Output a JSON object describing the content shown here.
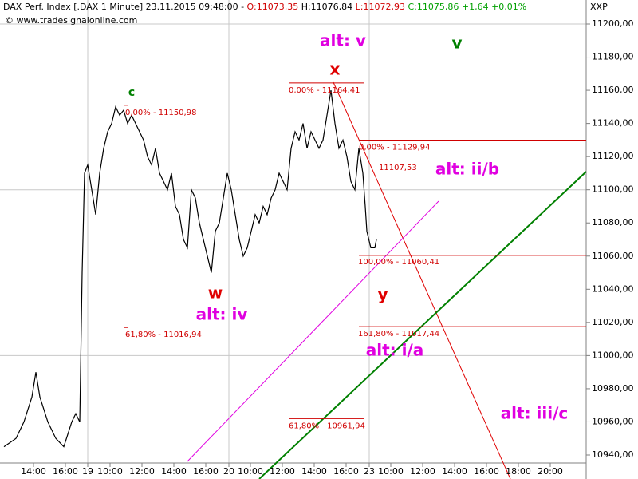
{
  "header": {
    "instrument": "DAX Perf. Index [.DAX  1 Minute] 23.11.2015 09:48:00 - ",
    "open": "O:11073,35",
    "high": "H:11076,84",
    "low": "L:11072,93",
    "close": "C:11075,86 +1,64 +0,01%",
    "source": "© www.tradesignalonline.com",
    "symbol": "XXP"
  },
  "chart_data": {
    "type": "line",
    "series": [
      {
        "name": "DAX",
        "color": "#000000",
        "x": [
          0.25,
          1,
          1.5,
          2,
          2.25,
          2.5,
          3,
          3.5,
          4,
          4.5,
          4.75,
          5,
          5.15,
          5.3,
          5.5,
          5.75,
          6,
          6.25,
          6.5,
          6.75,
          7,
          7.25,
          7.5,
          7.75,
          8,
          8.25,
          8.5,
          8.75,
          9,
          9.25,
          9.5,
          9.75,
          10,
          10.25,
          10.5,
          10.75,
          11,
          11.25,
          11.5,
          11.75,
          12,
          12.25,
          12.5,
          12.75,
          13,
          13.25,
          13.5,
          13.75,
          14,
          14.25,
          14.5,
          14.75,
          15,
          15.25,
          15.5,
          15.75,
          16,
          16.25,
          16.5,
          16.75,
          17,
          17.25,
          17.5,
          17.75,
          18,
          18.25,
          18.5,
          18.75,
          19,
          19.25,
          19.5,
          19.75,
          20,
          20.25,
          20.5,
          20.75,
          21,
          21.25,
          21.5,
          21.75,
          22,
          22.25,
          22.5,
          22.75,
          22.9,
          23,
          23.25,
          23.5,
          23.6
        ],
        "values": [
          10945,
          10950,
          10960,
          10975,
          10990,
          10975,
          10960,
          10950,
          10945,
          10960,
          10965,
          10960,
          11050,
          11110,
          11115,
          11100,
          11085,
          11110,
          11125,
          11135,
          11140,
          11150,
          11145,
          11148,
          11140,
          11145,
          11140,
          11135,
          11130,
          11120,
          11115,
          11125,
          11110,
          11105,
          11100,
          11110,
          11090,
          11085,
          11070,
          11065,
          11100,
          11095,
          11080,
          11070,
          11060,
          11050,
          11075,
          11080,
          11095,
          11110,
          11100,
          11085,
          11070,
          11060,
          11065,
          11075,
          11085,
          11080,
          11090,
          11085,
          11095,
          11100,
          11110,
          11105,
          11100,
          11125,
          11135,
          11130,
          11140,
          11125,
          11135,
          11130,
          11125,
          11130,
          11145,
          11160,
          11140,
          11125,
          11130,
          11120,
          11105,
          11100,
          11125,
          11110,
          11090,
          11075,
          11065,
          11065,
          11070
        ]
      }
    ],
    "levels": [
      {
        "value": 11150.98,
        "label": "0,00% - 11150,98"
      },
      {
        "value": 11164.41,
        "label": "0,00% - 11164,41"
      },
      {
        "value": 11129.94,
        "label": "0,00% - 11129,94"
      },
      {
        "value": 11060.41,
        "label": "100,00% - 11060,41"
      },
      {
        "value": 11017.44,
        "label": "161,80% - 11017,44"
      },
      {
        "value": 11016.94,
        "label": "61,80% - 11016,94"
      },
      {
        "value": 10961.94,
        "label": "61,80% - 10961,94"
      },
      {
        "value": 11107.53,
        "label": "11107,53"
      }
    ],
    "annotations": [
      "c",
      "alt: v",
      "v",
      "x",
      "w",
      "alt: iv",
      "y",
      "alt: ii/b",
      "alt: i/a",
      "alt: iii/c"
    ],
    "xlim": [
      0,
      36.65
    ],
    "xticks": [
      {
        "value": 2.1,
        "label": "14:00"
      },
      {
        "value": 4.1,
        "label": "16:00"
      },
      {
        "value": 5.5,
        "label": "19"
      },
      {
        "value": 6.9,
        "label": "10:00"
      },
      {
        "value": 8.9,
        "label": "12:00"
      },
      {
        "value": 10.9,
        "label": "14:00"
      },
      {
        "value": 12.9,
        "label": "16:00"
      },
      {
        "value": 14.35,
        "label": "20"
      },
      {
        "value": 15.7,
        "label": "10:00"
      },
      {
        "value": 17.7,
        "label": "12:00"
      },
      {
        "value": 19.7,
        "label": "14:00"
      },
      {
        "value": 21.7,
        "label": "16:00"
      },
      {
        "value": 23.15,
        "label": "23"
      },
      {
        "value": 24.5,
        "label": "10:00"
      },
      {
        "value": 26.5,
        "label": "12:00"
      },
      {
        "value": 28.5,
        "label": "14:00"
      },
      {
        "value": 30.5,
        "label": "16:00"
      },
      {
        "value": 32.5,
        "label": "18:00"
      },
      {
        "value": 34.5,
        "label": "20:00"
      }
    ],
    "ylim": [
      10940,
      11200
    ],
    "yticks": [
      {
        "value": 10940,
        "label": "10940,00"
      },
      {
        "value": 10960,
        "label": "10960,00"
      },
      {
        "value": 10980,
        "label": "10980,00"
      },
      {
        "value": 11000,
        "label": "11000,00"
      },
      {
        "value": 11020,
        "label": "11020,00"
      },
      {
        "value": 11040,
        "label": "11040,00"
      },
      {
        "value": 11060,
        "label": "11060,00"
      },
      {
        "value": 11080,
        "label": "11080,00"
      },
      {
        "value": 11100,
        "label": "11100,00"
      },
      {
        "value": 11120,
        "label": "11120,00"
      },
      {
        "value": 11140,
        "label": "11140,00"
      },
      {
        "value": 11160,
        "label": "11160,00"
      },
      {
        "value": 11180,
        "label": "11180,00"
      },
      {
        "value": 11200,
        "label": "11200,00"
      }
    ]
  }
}
